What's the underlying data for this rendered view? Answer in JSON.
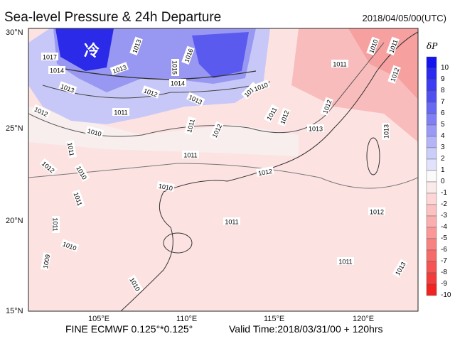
{
  "header": {
    "title": "Sea-level Pressure & 24h Departure",
    "issue_time": "2018/04/05/00(UTC)"
  },
  "footer": {
    "model": "FINE ECMWF 0.125°*0.125°",
    "valid_time": "Valid Time:2018/03/31/00 + 120hrs"
  },
  "map": {
    "lat_labels": [
      "30°N",
      "25°N",
      "20°N",
      "15°N"
    ],
    "lon_labels": [
      "105°E",
      "110°E",
      "115°E",
      "120°E"
    ],
    "annotation": "冷",
    "contour_labels": [
      "1017",
      "1014",
      "1013",
      "1012",
      "1013",
      "1013",
      "1015",
      "1016",
      "1014",
      "1012",
      "1013",
      "1011",
      "1012",
      "1010",
      "1011",
      "1012",
      "1011",
      "1010",
      "1011",
      "1012",
      "1012",
      "1013",
      "1011",
      "1010",
      "1011",
      "1012",
      "1013",
      "1012",
      "1011",
      "1012",
      "1011",
      "1013",
      "1010",
      "1010",
      "1011",
      "1012",
      "1011",
      "1011",
      "1010",
      "1009",
      "1010"
    ]
  },
  "colorbar": {
    "title": "δP",
    "labels": [
      "10",
      "9",
      "8",
      "7",
      "6",
      "5",
      "4",
      "3",
      "2",
      "1",
      "0",
      "-1",
      "-2",
      "-3",
      "-4",
      "-5",
      "-6",
      "-7",
      "-8",
      "-9",
      "-10"
    ],
    "colors": [
      "#1414f0",
      "#2a2af0",
      "#3c3cf0",
      "#5050f0",
      "#6868f2",
      "#8080f4",
      "#9a9af6",
      "#b4b4f8",
      "#cccefa",
      "#e2e2fc",
      "#fafafa",
      "#fbeaea",
      "#fdd6d6",
      "#fcc2c2",
      "#fbaeae",
      "#fa9898",
      "#f88282",
      "#f66a6a",
      "#f45454",
      "#f23c3c",
      "#f02222"
    ],
    "accent_cold": "#1a1ae6",
    "accent_warm": "#f02020"
  }
}
